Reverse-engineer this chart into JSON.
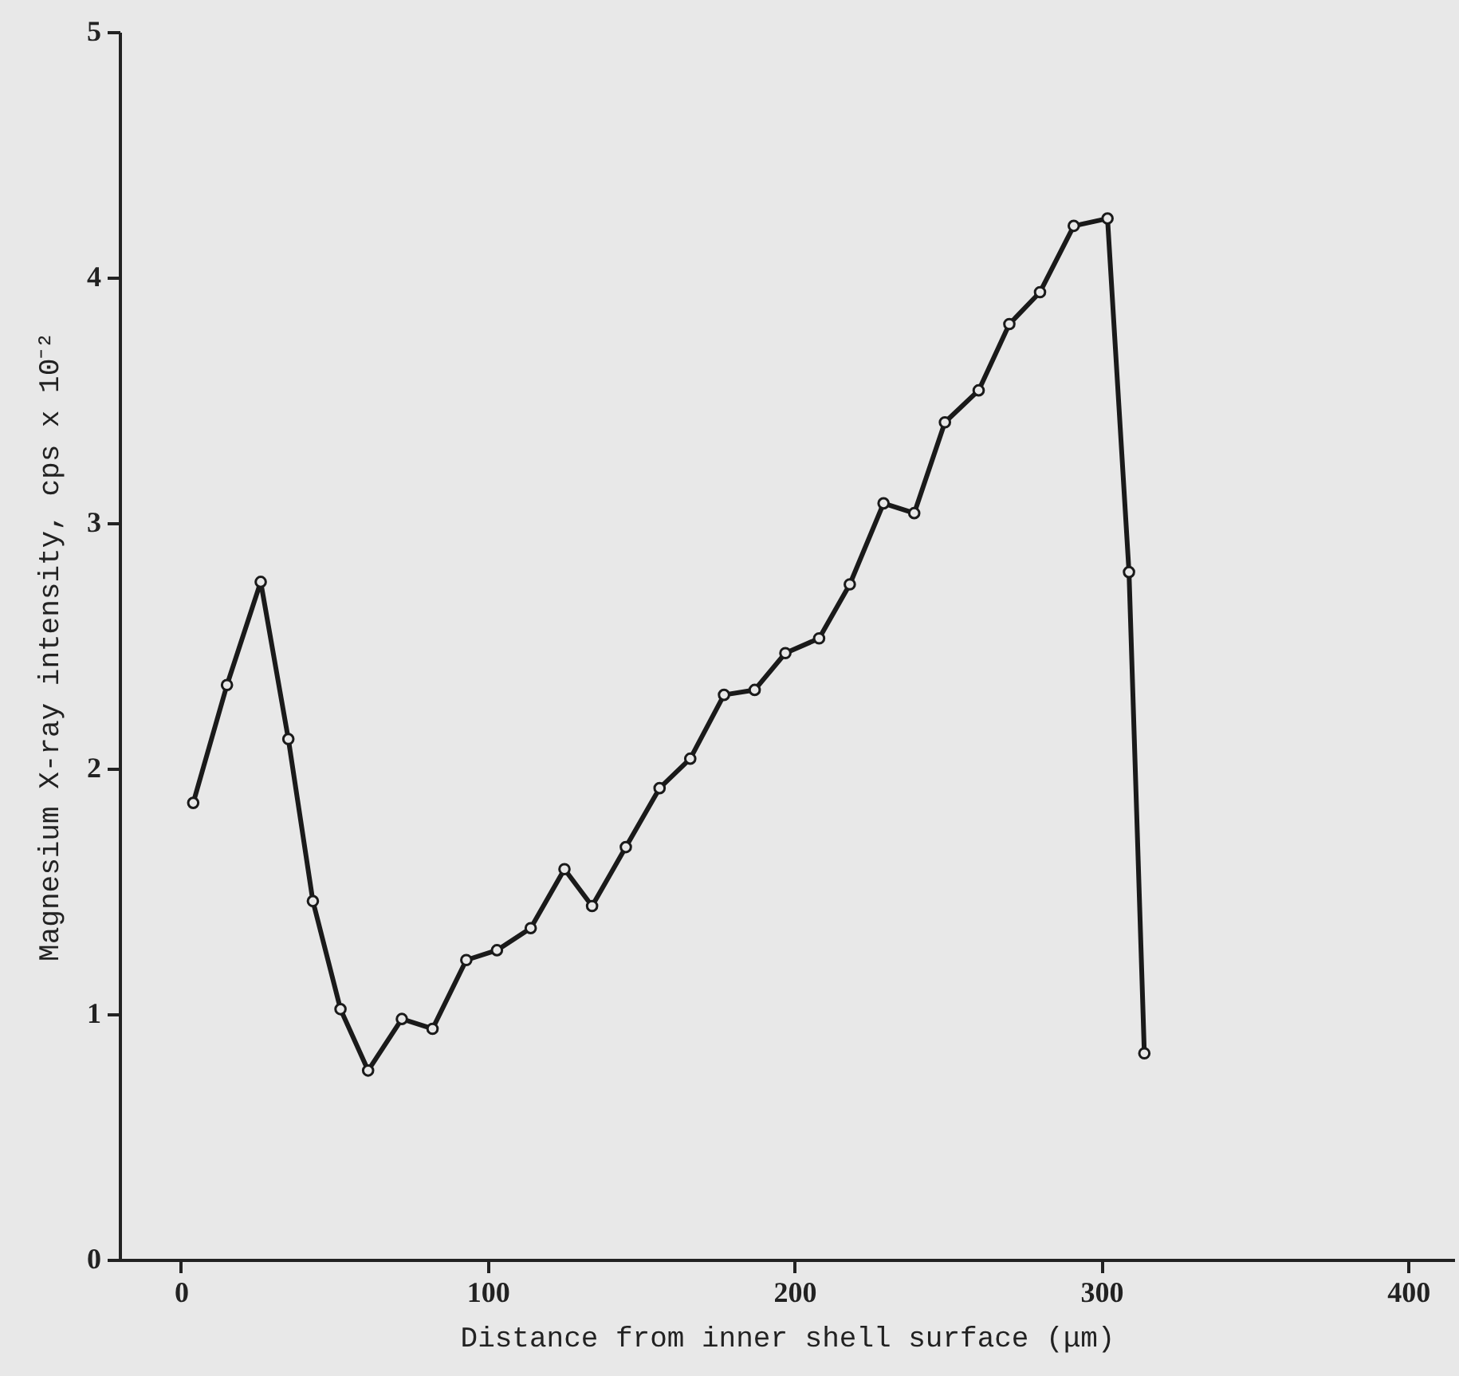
{
  "chart_data": {
    "type": "line",
    "xlabel": "Distance from inner shell surface (μm)",
    "ylabel": "Magnesium X-ray intensity, cps x 10⁻²",
    "x": [
      4,
      15,
      26,
      35,
      43,
      52,
      61,
      72,
      82,
      93,
      103,
      114,
      125,
      134,
      145,
      156,
      166,
      177,
      187,
      197,
      208,
      218,
      229,
      239,
      249,
      260,
      270,
      280,
      291,
      302,
      309,
      314
    ],
    "series": [
      {
        "color": "#1a1a1a",
        "values": [
          1.86,
          2.34,
          2.76,
          2.12,
          1.46,
          1.02,
          0.77,
          0.98,
          0.94,
          1.22,
          1.26,
          1.35,
          1.59,
          1.44,
          1.68,
          1.92,
          2.04,
          2.3,
          2.32,
          2.47,
          2.53,
          2.75,
          3.08,
          3.04,
          3.41,
          3.54,
          3.81,
          3.94,
          4.21,
          4.24,
          2.8,
          0.84
        ]
      }
    ],
    "xlim": [
      -20,
      415
    ],
    "ylim": [
      0,
      5
    ],
    "xticks": [
      0,
      100,
      200,
      300,
      400
    ],
    "yticks": [
      0,
      1,
      2,
      3,
      4,
      5
    ],
    "grid": false,
    "marker": "circle",
    "line_style": "solid"
  }
}
